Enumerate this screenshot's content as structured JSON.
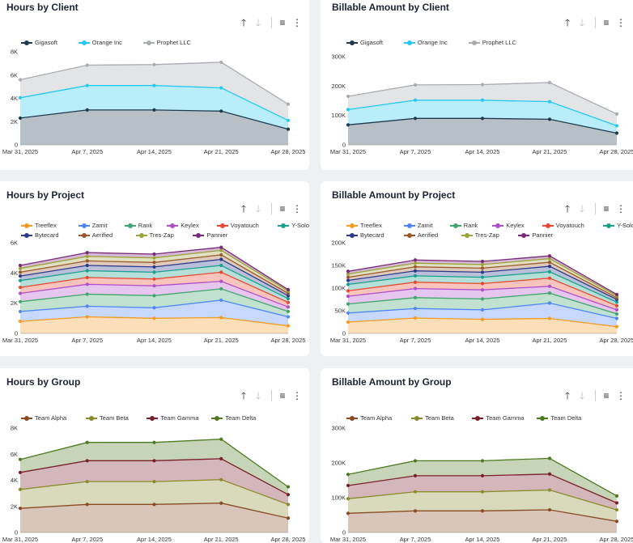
{
  "colors": {
    "axis": "#888888",
    "tick_text": "#333333",
    "title": "#1d2335"
  },
  "toolbar": {
    "sort_up_icon": "arrow-up-icon",
    "sort_down_icon": "arrow-down-icon",
    "filter_icon": "filter-icon",
    "menu_icon": "more-vertical-icon",
    "sort_up": "🡑",
    "sort_down": "🡓",
    "filter": "≡",
    "menu": "⋮"
  },
  "chart_data": [
    {
      "id": "hours-by-client",
      "type": "area",
      "stacked": true,
      "title": "Hours by Client",
      "x": [
        "Mar 31, 2025",
        "Apr 7, 2025",
        "Apr 14, 2025",
        "Apr 21, 2025",
        "Apr 28, 2025"
      ],
      "ylim": [
        0,
        8000
      ],
      "yticks": [
        {
          "v": 0,
          "label": "0"
        },
        {
          "v": 2000,
          "label": "2K"
        },
        {
          "v": 4000,
          "label": "4K"
        },
        {
          "v": 6000,
          "label": "6K"
        },
        {
          "v": 8000,
          "label": "8K"
        }
      ],
      "series": [
        {
          "name": "Gigasoft",
          "color": "#1d3a4f",
          "values": [
            2300,
            3000,
            3000,
            2900,
            1350
          ]
        },
        {
          "name": "Orange Inc",
          "color": "#25c8f0",
          "values": [
            1750,
            2100,
            2100,
            2000,
            750
          ]
        },
        {
          "name": "Prophet LLC",
          "color": "#a8acb2",
          "values": [
            1550,
            1750,
            1800,
            2200,
            1400
          ]
        }
      ]
    },
    {
      "id": "billable-by-client",
      "type": "area",
      "stacked": true,
      "title": "Billable Amount by Client",
      "x": [
        "Mar 31, 2025",
        "Apr 7, 2025",
        "Apr 14, 2025",
        "Apr 21, 2025",
        "Apr 28, 2025"
      ],
      "ylim": [
        0,
        300000
      ],
      "yticks": [
        {
          "v": 0,
          "label": "0"
        },
        {
          "v": 100000,
          "label": "100K"
        },
        {
          "v": 200000,
          "label": "200K"
        },
        {
          "v": 300000,
          "label": "300K"
        }
      ],
      "series": [
        {
          "name": "Gigasoft",
          "color": "#1d3a4f",
          "values": [
            68000,
            90000,
            90000,
            87000,
            40000
          ]
        },
        {
          "name": "Orange Inc",
          "color": "#25c8f0",
          "values": [
            52000,
            62000,
            62000,
            60000,
            25000
          ]
        },
        {
          "name": "Prophet LLC",
          "color": "#a8acb2",
          "values": [
            45000,
            52000,
            53000,
            65000,
            40000
          ]
        }
      ]
    },
    {
      "id": "hours-by-project",
      "type": "area",
      "stacked": true,
      "title": "Hours by Project",
      "x": [
        "Mar 31, 2025",
        "Apr 7, 2025",
        "Apr 14, 2025",
        "Apr 21, 2025",
        "Apr 28, 2025"
      ],
      "ylim": [
        0,
        6000
      ],
      "yticks": [
        {
          "v": 0,
          "label": "0"
        },
        {
          "v": 2000,
          "label": "2K"
        },
        {
          "v": 4000,
          "label": "4K"
        },
        {
          "v": 6000,
          "label": "6K"
        }
      ],
      "series": [
        {
          "name": "Treeflex",
          "color": "#f59a23",
          "values": [
            800,
            1100,
            1000,
            1050,
            500
          ]
        },
        {
          "name": "Zamit",
          "color": "#4f86f7",
          "values": [
            650,
            700,
            700,
            1150,
            600
          ]
        },
        {
          "name": "Rank",
          "color": "#3fa66b",
          "values": [
            650,
            800,
            800,
            750,
            350
          ]
        },
        {
          "name": "Keylex",
          "color": "#b14ec9",
          "values": [
            550,
            650,
            650,
            500,
            300
          ]
        },
        {
          "name": "Voyatouch",
          "color": "#e8492f",
          "values": [
            400,
            450,
            450,
            600,
            300
          ]
        },
        {
          "name": "Y-Solowarm",
          "color": "#1aa08c",
          "values": [
            450,
            450,
            450,
            450,
            250
          ]
        },
        {
          "name": "Bytecard",
          "color": "#2d3a8c",
          "values": [
            300,
            350,
            350,
            400,
            200
          ]
        },
        {
          "name": "Aerified",
          "color": "#9b5a2c",
          "values": [
            250,
            300,
            300,
            300,
            150
          ]
        },
        {
          "name": "Tres-Zap",
          "color": "#9ea23a",
          "values": [
            250,
            300,
            300,
            300,
            150
          ]
        },
        {
          "name": "Pannier",
          "color": "#7a2878",
          "values": [
            200,
            250,
            250,
            200,
            100
          ]
        }
      ]
    },
    {
      "id": "billable-by-project",
      "type": "area",
      "stacked": true,
      "title": "Billable Amount by Project",
      "x": [
        "Mar 31, 2025",
        "Apr 7, 2025",
        "Apr 14, 2025",
        "Apr 21, 2025",
        "Apr 28, 2025"
      ],
      "ylim": [
        0,
        200000
      ],
      "yticks": [
        {
          "v": 0,
          "label": "0"
        },
        {
          "v": 50000,
          "label": "50K"
        },
        {
          "v": 100000,
          "label": "100K"
        },
        {
          "v": 150000,
          "label": "150K"
        },
        {
          "v": 200000,
          "label": "200K"
        }
      ],
      "series": [
        {
          "name": "Treeflex",
          "color": "#f59a23",
          "values": [
            25000,
            34000,
            31000,
            33000,
            15000
          ]
        },
        {
          "name": "Zamit",
          "color": "#4f86f7",
          "values": [
            20000,
            21000,
            21000,
            34000,
            18000
          ]
        },
        {
          "name": "Rank",
          "color": "#3fa66b",
          "values": [
            20000,
            24000,
            24000,
            22000,
            10000
          ]
        },
        {
          "name": "Keylex",
          "color": "#b14ec9",
          "values": [
            17000,
            20000,
            20000,
            15000,
            9000
          ]
        },
        {
          "name": "Voyatouch",
          "color": "#e8492f",
          "values": [
            12000,
            14000,
            14000,
            18000,
            9000
          ]
        },
        {
          "name": "Y-Solowarm",
          "color": "#1aa08c",
          "values": [
            14000,
            14000,
            14000,
            14000,
            8000
          ]
        },
        {
          "name": "Bytecard",
          "color": "#2d3a8c",
          "values": [
            9000,
            11000,
            11000,
            12000,
            6000
          ]
        },
        {
          "name": "Aerified",
          "color": "#9b5a2c",
          "values": [
            7000,
            9000,
            9000,
            9000,
            4000
          ]
        },
        {
          "name": "Tres-Zap",
          "color": "#9ea23a",
          "values": [
            7000,
            8000,
            8000,
            8000,
            4000
          ]
        },
        {
          "name": "Pannier",
          "color": "#7a2878",
          "values": [
            6000,
            7000,
            7000,
            6000,
            3000
          ]
        }
      ]
    },
    {
      "id": "hours-by-group",
      "type": "area",
      "stacked": true,
      "title": "Hours by Group",
      "x": [
        "Mar 31, 2025",
        "Apr 7, 2025",
        "Apr 14, 2025",
        "Apr 21, 2025",
        "Apr 28, 2025"
      ],
      "ylim": [
        0,
        8000
      ],
      "yticks": [
        {
          "v": 0,
          "label": "0"
        },
        {
          "v": 2000,
          "label": "2K"
        },
        {
          "v": 4000,
          "label": "4K"
        },
        {
          "v": 6000,
          "label": "6K"
        },
        {
          "v": 8000,
          "label": "8K"
        }
      ],
      "series": [
        {
          "name": "Team Alpha",
          "color": "#8a4b24",
          "values": [
            1850,
            2150,
            2150,
            2250,
            1100
          ]
        },
        {
          "name": "Team Beta",
          "color": "#8a8a2a",
          "values": [
            1450,
            1750,
            1750,
            1800,
            1050
          ]
        },
        {
          "name": "Team Gamma",
          "color": "#7a1f2b",
          "values": [
            1300,
            1600,
            1600,
            1600,
            750
          ]
        },
        {
          "name": "Team Delta",
          "color": "#4e7b1f",
          "values": [
            1000,
            1400,
            1400,
            1500,
            600
          ]
        }
      ]
    },
    {
      "id": "billable-by-group",
      "type": "area",
      "stacked": true,
      "title": "Billable Amount by Group",
      "x": [
        "Mar 31, 2025",
        "Apr 7, 2025",
        "Apr 14, 2025",
        "Apr 21, 2025",
        "Apr 28, 2025"
      ],
      "ylim": [
        0,
        300000
      ],
      "yticks": [
        {
          "v": 0,
          "label": "0"
        },
        {
          "v": 100000,
          "label": "100K"
        },
        {
          "v": 200000,
          "label": "200K"
        },
        {
          "v": 300000,
          "label": "300K"
        }
      ],
      "series": [
        {
          "name": "Team Alpha",
          "color": "#8a4b24",
          "values": [
            55000,
            62000,
            62000,
            65000,
            32000
          ]
        },
        {
          "name": "Team Beta",
          "color": "#8a8a2a",
          "values": [
            42000,
            55000,
            55000,
            57000,
            33000
          ]
        },
        {
          "name": "Team Gamma",
          "color": "#7a1f2b",
          "values": [
            38000,
            46000,
            46000,
            46000,
            20000
          ]
        },
        {
          "name": "Team Delta",
          "color": "#4e7b1f",
          "values": [
            32000,
            43000,
            43000,
            45000,
            20000
          ]
        }
      ]
    }
  ]
}
